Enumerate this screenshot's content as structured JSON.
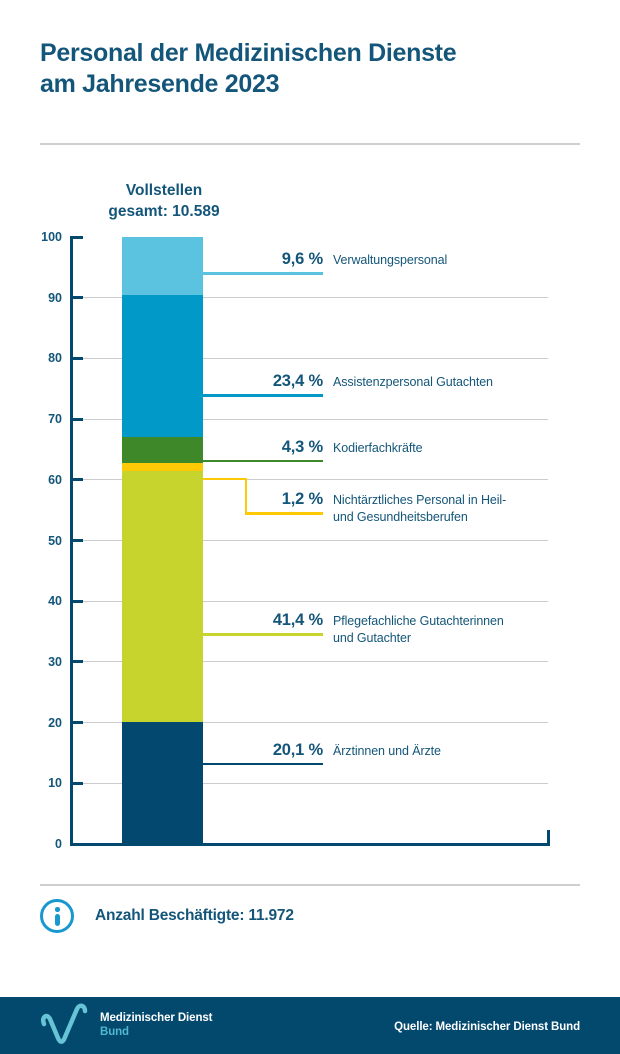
{
  "title": {
    "line1": "Personal der Medizinischen Dienste",
    "line2": "am Jahresende 2023"
  },
  "chart_data": {
    "type": "bar",
    "variant": "single-stacked-percentage-column",
    "title": "Personal der Medizinischen Dienste am Jahresende 2023",
    "total_annotation": {
      "line1": "Vollstellen",
      "line2": "gesamt: 10.589"
    },
    "total_fulltime_positions": "10.589",
    "ylim": [
      0,
      100
    ],
    "ytick_step": 10,
    "grid": true,
    "unit": "%",
    "segments_top_to_bottom": [
      {
        "name": "Verwaltungspersonal",
        "pct": 9.6,
        "pct_display": "9,6 %",
        "color": "#5BC3E0",
        "label_lines": [
          "Verwaltungspersonal"
        ]
      },
      {
        "name": "Assistenzpersonal Gutachten",
        "pct": 23.4,
        "pct_display": "23,4 %",
        "color": "#0099C8",
        "label_lines": [
          "Assistenzpersonal Gutachten"
        ]
      },
      {
        "name": "Kodierfachkräfte",
        "pct": 4.3,
        "pct_display": "4,3 %",
        "color": "#3E8829",
        "label_lines": [
          "Kodierfachkräfte"
        ]
      },
      {
        "name": "Nichtärztliches Personal in Heil- und Gesundheitsberufen",
        "pct": 1.2,
        "pct_display": "1,2 %",
        "color": "#FFC905",
        "label_lines": [
          "Nichtärztliches Personal in Heil-",
          "und Gesundheitsberufen"
        ]
      },
      {
        "name": "Pflegefachliche Gutachterinnen und Gutachter",
        "pct": 41.4,
        "pct_display": "41,4 %",
        "color": "#C8D42E",
        "label_lines": [
          "Pflegefachliche Gutachterinnen",
          "und Gutachter"
        ]
      },
      {
        "name": "Ärztinnen und Ärzte",
        "pct": 20.1,
        "pct_display": "20,1 %",
        "color": "#03496F",
        "label_lines": [
          "Ärztinnen und Ärzte"
        ]
      }
    ]
  },
  "info": {
    "label": "Anzahl Beschäftigte: 11.972"
  },
  "footer": {
    "logo_title": "Medizinischer Dienst",
    "logo_subtitle": "Bund",
    "source": "Quelle: Medizinischer Dienst Bund"
  },
  "colors": {
    "text_teal": "#14567A",
    "axis_navy": "#03496F",
    "grid_gray": "#CCCCCC",
    "info_cyan": "#1898CE",
    "logo_cyan": "#66C4D6",
    "footer_bg": "#03486D"
  }
}
